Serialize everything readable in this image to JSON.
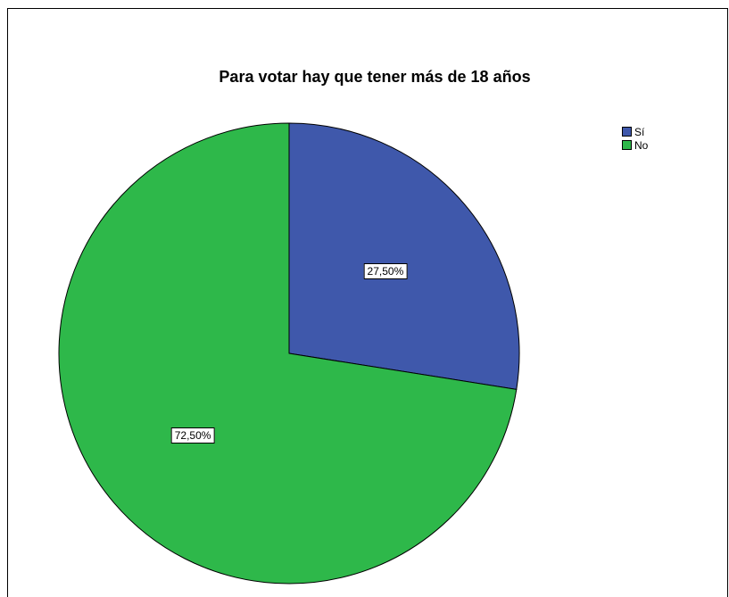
{
  "chart_data": {
    "type": "pie",
    "title": "Para votar hay que tener más de 18 años",
    "legend_position": "top-right",
    "slices": [
      {
        "name": "Sí",
        "value": 27.5,
        "label": "27,50%",
        "color": "#3f58ab"
      },
      {
        "name": "No",
        "value": 72.5,
        "label": "72,50%",
        "color": "#2eb84a"
      }
    ]
  }
}
